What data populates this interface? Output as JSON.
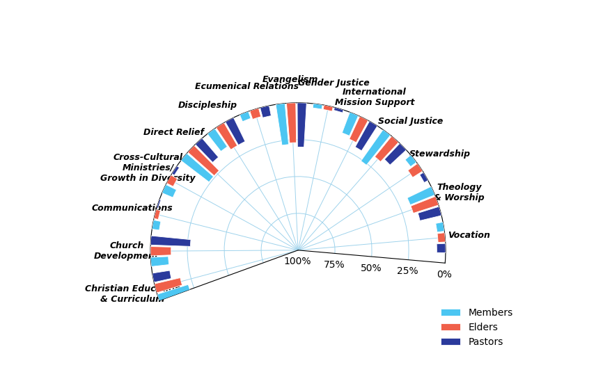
{
  "chart_data": {
    "type": "radial_bar",
    "categories": [
      "Christian Education\n& Curriculum",
      "Church\nDevelopment",
      "Communications",
      "Cross-Cultural\nMinistries/\nGrowth in Diversity",
      "Direct Relief",
      "Discipleship",
      "Ecumenical Relations",
      "Evangelism",
      "Gender Justice",
      "International\nMission Support",
      "Social Justice",
      "Stewardship",
      "Theology\n& Worship",
      "Vocation"
    ],
    "series": [
      {
        "name": "Members",
        "color": "#4cc6f2",
        "values": [
          22,
          12,
          5,
          8,
          24,
          15,
          5,
          28,
          3,
          15,
          26,
          5,
          18,
          5
        ]
      },
      {
        "name": "Elders",
        "color": "#f0604a",
        "values": [
          18,
          14,
          3,
          5,
          24,
          18,
          6,
          27,
          3,
          17,
          18,
          8,
          18,
          5
        ]
      },
      {
        "name": "Pastors",
        "color": "#2b3a9c",
        "values": [
          12,
          27,
          1,
          2,
          17,
          18,
          7,
          30,
          2,
          20,
          15,
          3,
          15,
          6
        ]
      }
    ],
    "ylim": [
      0,
      100
    ],
    "yticks": [
      {
        "value": 0,
        "label": "0%"
      },
      {
        "value": 25,
        "label": "25%"
      },
      {
        "value": 50,
        "label": "50%"
      },
      {
        "value": 75,
        "label": "75%"
      },
      {
        "value": 100,
        "label": "100%"
      }
    ],
    "grid": true,
    "legend": "lower right"
  }
}
